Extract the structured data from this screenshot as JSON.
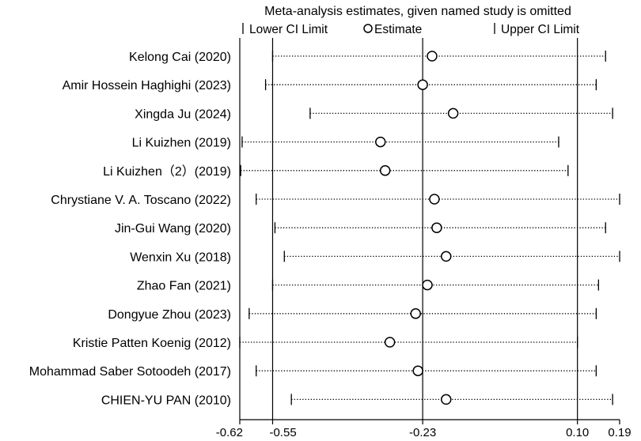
{
  "chart_data": {
    "type": "forest",
    "title": "Meta-analysis estimates, given named study is omitted",
    "legend": {
      "lower": "Lower CI Limit",
      "estimate": "Estimate",
      "upper": "Upper CI Limit",
      "placement": "top"
    },
    "x_ticks": [
      -0.62,
      -0.55,
      -0.23,
      0.1,
      0.19
    ],
    "x_tick_labels": [
      "-0.62",
      "-0.55",
      "-0.23",
      "0.10",
      "0.19"
    ],
    "xlim": [
      -0.62,
      0.19
    ],
    "reference_lines": [
      -0.55,
      -0.23,
      0.1
    ],
    "studies": [
      {
        "name": "Kelong Cai (2020)",
        "lower": -0.55,
        "estimate": -0.21,
        "upper": 0.16
      },
      {
        "name": "Amir Hossein Haghighi (2023)",
        "lower": -0.565,
        "estimate": -0.23,
        "upper": 0.14
      },
      {
        "name": "Xingda Ju (2024)",
        "lower": -0.47,
        "estimate": -0.165,
        "upper": 0.175
      },
      {
        "name": "Li Kuizhen (2019)",
        "lower": -0.615,
        "estimate": -0.32,
        "upper": 0.06
      },
      {
        "name": "Li Kuizhen（2）(2019)",
        "lower": -0.618,
        "estimate": -0.31,
        "upper": 0.08
      },
      {
        "name": "Chrystiane V. A. Toscano (2022)",
        "lower": -0.585,
        "estimate": -0.205,
        "upper": 0.19
      },
      {
        "name": "Jin-Gui Wang (2020)",
        "lower": -0.545,
        "estimate": -0.2,
        "upper": 0.16
      },
      {
        "name": "Wenxin Xu (2018)",
        "lower": -0.525,
        "estimate": -0.18,
        "upper": 0.19
      },
      {
        "name": "Zhao Fan (2021)",
        "lower": -0.55,
        "estimate": -0.22,
        "upper": 0.145
      },
      {
        "name": "Dongyue Zhou (2023)",
        "lower": -0.6,
        "estimate": -0.245,
        "upper": 0.14
      },
      {
        "name": "Kristie Patten Koenig (2012)",
        "lower": -0.62,
        "estimate": -0.3,
        "upper": 0.1
      },
      {
        "name": "Mohammad Saber Sotoodeh (2017)",
        "lower": -0.585,
        "estimate": -0.24,
        "upper": 0.14
      },
      {
        "name": "CHIEN-YU PAN (2010)",
        "lower": -0.51,
        "estimate": -0.18,
        "upper": 0.175
      }
    ]
  }
}
